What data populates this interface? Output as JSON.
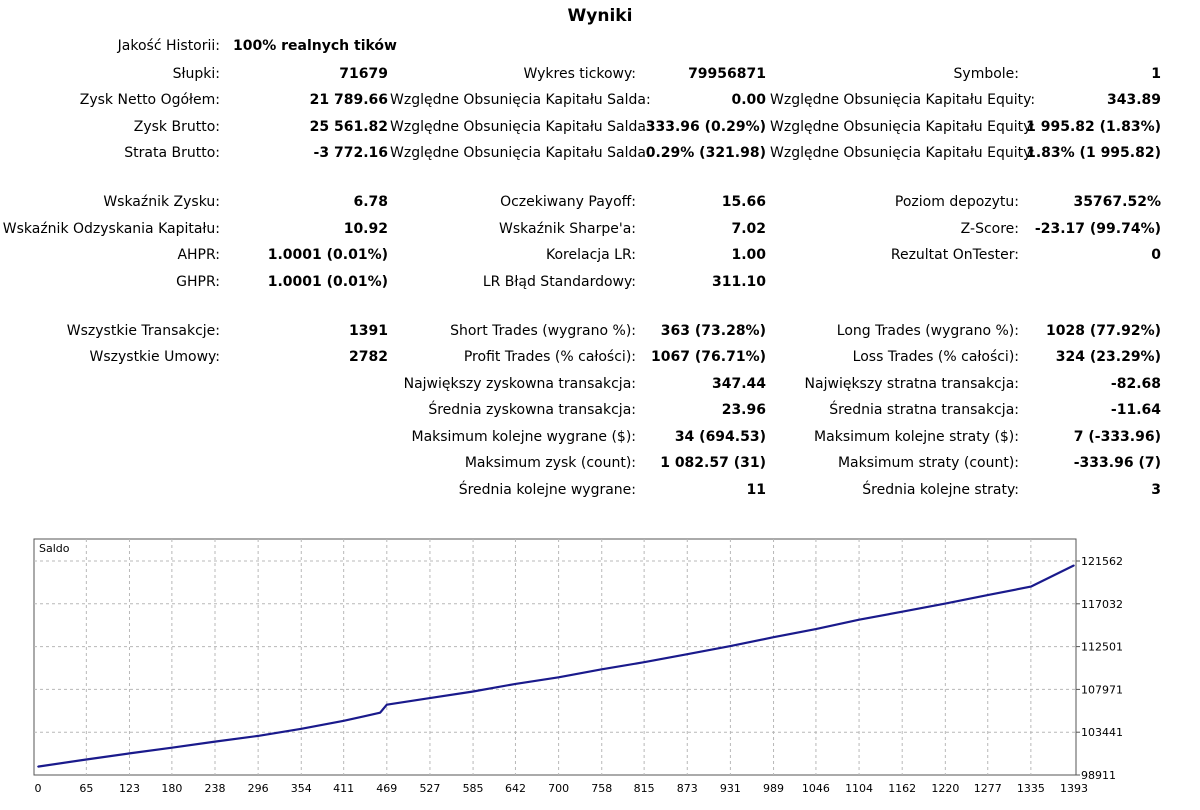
{
  "title": "Wyniki",
  "history": {
    "label": "Jakość Historii:",
    "value": "100% realnych tików"
  },
  "rows": [
    {
      "top": 65,
      "c1": [
        "Słupki:",
        "71679"
      ],
      "c2": [
        "Wykres tickowy:",
        "79956871"
      ],
      "c3": [
        "Symbole:",
        "1"
      ]
    },
    {
      "top": 91,
      "c1": [
        "Zysk Netto Ogółem:",
        "21 789.66"
      ],
      "c2": [
        "Względne Obsunięcia Kapitału Salda:",
        "0.00"
      ],
      "c3": [
        "Względne Obsunięcia Kapitału Equity:",
        "343.89"
      ]
    },
    {
      "top": 118,
      "c1": [
        "Zysk Brutto:",
        "25 561.82"
      ],
      "c2": [
        "Względne Obsunięcia Kapitału Salda:",
        "333.96 (0.29%)"
      ],
      "c3": [
        "Względne Obsunięcia Kapitału Equity:",
        "1 995.82 (1.83%)"
      ]
    },
    {
      "top": 144,
      "c1": [
        "Strata Brutto:",
        "-3 772.16"
      ],
      "c2": [
        "Względne Obsunięcia Kapitału Salda:",
        "0.29% (321.98)"
      ],
      "c3": [
        "Względne Obsunięcia Kapitału Equity:",
        "1.83% (1 995.82)"
      ]
    },
    {
      "top": 193,
      "c1": [
        "Wskaźnik Zysku:",
        "6.78"
      ],
      "c2": [
        "Oczekiwany Payoff:",
        "15.66"
      ],
      "c3": [
        "Poziom depozytu:",
        "35767.52%"
      ]
    },
    {
      "top": 220,
      "c1": [
        "Wskaźnik Odzyskania Kapitału:",
        "10.92"
      ],
      "c2": [
        "Wskaźnik Sharpe'a:",
        "7.02"
      ],
      "c3": [
        "Z-Score:",
        "-23.17 (99.74%)"
      ]
    },
    {
      "top": 246,
      "c1": [
        "AHPR:",
        "1.0001 (0.01%)"
      ],
      "c2": [
        "Korelacja LR:",
        "1.00"
      ],
      "c3": [
        "Rezultat OnTester:",
        "0"
      ]
    },
    {
      "top": 273,
      "c1": [
        "GHPR:",
        "1.0001 (0.01%)"
      ],
      "c2": [
        "LR Błąd Standardowy:",
        "311.10"
      ],
      "c3": null
    },
    {
      "top": 322,
      "c1": [
        "Wszystkie Transakcje:",
        "1391"
      ],
      "c2": [
        "Short Trades (wygrano %):",
        "363 (73.28%)"
      ],
      "c3": [
        "Long Trades (wygrano %):",
        "1028 (77.92%)"
      ]
    },
    {
      "top": 348,
      "c1": [
        "Wszystkie Umowy:",
        "2782"
      ],
      "c2": [
        "Profit Trades (% całości):",
        "1067 (76.71%)"
      ],
      "c3": [
        "Loss Trades (% całości):",
        "324 (23.29%)"
      ]
    },
    {
      "top": 375,
      "c1": null,
      "c2": [
        "Największy zyskowna transakcja:",
        "347.44"
      ],
      "c3": [
        "Największy stratna transakcja:",
        "-82.68"
      ]
    },
    {
      "top": 401,
      "c1": null,
      "c2": [
        "Średnia zyskowna transakcja:",
        "23.96"
      ],
      "c3": [
        "Średnia stratna transakcja:",
        "-11.64"
      ]
    },
    {
      "top": 428,
      "c1": null,
      "c2": [
        "Maksimum kolejne wygrane ($):",
        "34 (694.53)"
      ],
      "c3": [
        "Maksimum kolejne straty ($):",
        "7 (-333.96)"
      ]
    },
    {
      "top": 454,
      "c1": null,
      "c2": [
        "Maksimum zysk (count):",
        "1 082.57 (31)"
      ],
      "c3": [
        "Maksimum straty (count):",
        "-333.96 (7)"
      ]
    },
    {
      "top": 481,
      "c1": null,
      "c2": [
        "Średnia kolejne wygrane:",
        "11"
      ],
      "c3": [
        "Średnia kolejne straty:",
        "3"
      ]
    }
  ],
  "chart_data": {
    "type": "line",
    "title": "Saldo",
    "series_color": "#1a1a8c",
    "grid": true,
    "xlim": [
      0,
      1391
    ],
    "ylim": [
      98911,
      122700
    ],
    "x_ticks": [
      "0",
      "65",
      "123",
      "180",
      "238",
      "296",
      "354",
      "411",
      "469",
      "527",
      "585",
      "642",
      "700",
      "758",
      "815",
      "873",
      "931",
      "989",
      "1046",
      "1104",
      "1162",
      "1220",
      "1277",
      "1335",
      "1393"
    ],
    "y_ticks": [
      121562,
      117032,
      112501,
      107971,
      103441,
      98911
    ],
    "x": [
      0,
      65,
      123,
      180,
      238,
      296,
      354,
      411,
      440,
      460,
      469,
      527,
      585,
      642,
      700,
      758,
      815,
      873,
      931,
      989,
      1046,
      1104,
      1162,
      1220,
      1277,
      1335,
      1393
    ],
    "values": [
      99800,
      100550,
      101200,
      101800,
      102450,
      103050,
      103800,
      104650,
      105150,
      105500,
      106350,
      107050,
      107750,
      108550,
      109250,
      110100,
      110850,
      111700,
      112550,
      113500,
      114350,
      115350,
      116200,
      117050,
      117950,
      118850,
      121100
    ]
  }
}
